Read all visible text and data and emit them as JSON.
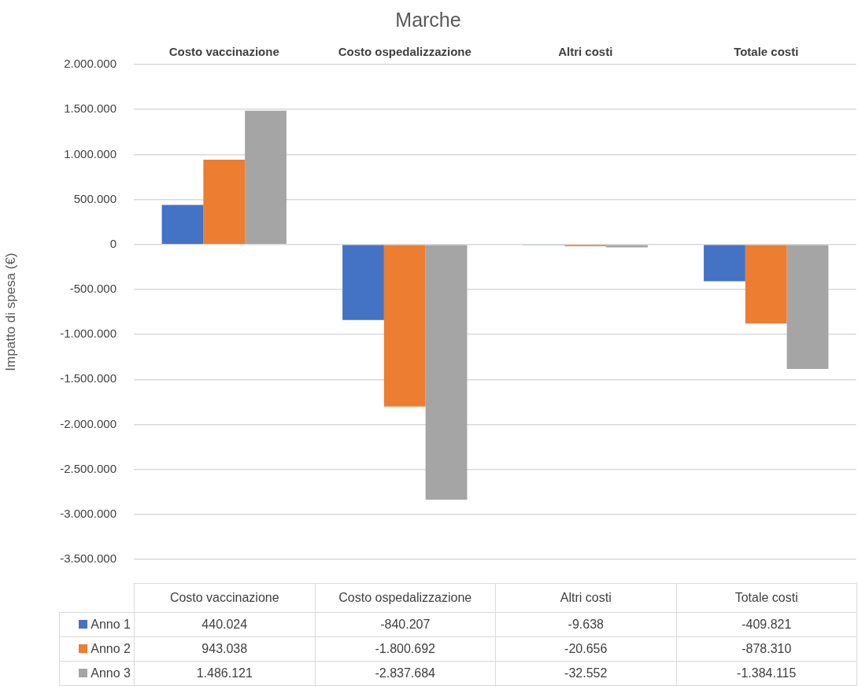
{
  "chart_data": {
    "type": "bar",
    "title": "Marche",
    "ylabel": "Impatto di spesa (€)",
    "categories": [
      "Costo vaccinazione",
      "Costo ospedalizzazione",
      "Altri costi",
      "Totale costi"
    ],
    "series": [
      {
        "name": "Anno 1",
        "color": "#4472c4",
        "values": [
          440024,
          -840207,
          -9638,
          -409821
        ],
        "value_labels": [
          "440.024",
          "-840.207",
          "-9.638",
          "-409.821"
        ]
      },
      {
        "name": "Anno 2",
        "color": "#ed7d31",
        "values": [
          943038,
          -1800692,
          -20656,
          -878310
        ],
        "value_labels": [
          "943.038",
          "-1.800.692",
          "-20.656",
          "-878.310"
        ]
      },
      {
        "name": "Anno 3",
        "color": "#a5a5a5",
        "values": [
          1486121,
          -2837684,
          -32552,
          -1384115
        ],
        "value_labels": [
          "1.486.121",
          "-2.837.684",
          "-32.552",
          "-1.384.115"
        ]
      }
    ],
    "ylim": [
      -3500000,
      2000000
    ],
    "yticks": [
      {
        "value": -3500000,
        "label": "-3.500.000"
      },
      {
        "value": -3000000,
        "label": "-3.000.000"
      },
      {
        "value": -2500000,
        "label": "-2.500.000"
      },
      {
        "value": -2000000,
        "label": "-2.000.000"
      },
      {
        "value": -1500000,
        "label": "-1.500.000"
      },
      {
        "value": -1000000,
        "label": "-1.000.000"
      },
      {
        "value": -500000,
        "label": "-500.000"
      },
      {
        "value": 0,
        "label": "0"
      },
      {
        "value": 500000,
        "label": "500.000"
      },
      {
        "value": 1000000,
        "label": "1.000.000"
      },
      {
        "value": 1500000,
        "label": "1.500.000"
      },
      {
        "value": 2000000,
        "label": "2.000.000"
      }
    ],
    "grid": "y",
    "legend": "bottom"
  }
}
